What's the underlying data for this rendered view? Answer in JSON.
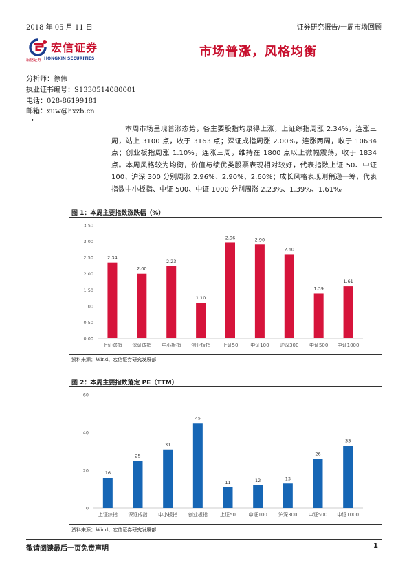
{
  "header": {
    "date": "2018 年 05 月 11 日",
    "category": "证券研究报告/一周市场回顾"
  },
  "logo": {
    "name": "宏信证券",
    "small_cn": "宏信证券",
    "english": "HONGXIN SECURITIES",
    "colors": {
      "red": "#c8102e",
      "blue": "#1a3d8f"
    }
  },
  "report_title": "市场普涨，风格均衡",
  "analyst": {
    "name_line": "分析师：徐伟",
    "license_line": "执业证书编号：S1330514080001",
    "phone_line": "电话：028-86199181",
    "email_line": "邮箱：xuw@hxzb.cn"
  },
  "bullet": "·",
  "body": {
    "paragraph": "本周市场呈现普涨态势，各主要股指均录得上涨，上证综指周涨 2.34%，连涨三周，站上 3100 点，收于 3163 点；深证成指周涨 2.00%，连涨两周，收于 10634 点；创业板指周涨 1.10%，连涨三周，维持在 1800 点以上微幅震荡，收于 1834 点。本周风格较为均衡，价值与绩优类股票表现相对较好，代表指数上证 50、中证 100、沪深 300 分别周涨 2.96%、2.90%、2.60%；成长风格表现则稍逊一筹，代表指数中小板指、中证 500、中证 1000 分别周涨 2.23%、1.39%、1.61%。"
  },
  "figures": [
    {
      "title": "图 1：本周主要指数涨跌幅（%）",
      "source": "资料来源：Wind、宏信证券研究发展部"
    },
    {
      "title": "图 2：本周主要指数落定 PE（TTM）",
      "source": "资料来源：Wind、宏信证券研究发展部"
    }
  ],
  "chart_data": [
    {
      "type": "bar",
      "title": "图 1：本周主要指数涨跌幅（%）",
      "categories": [
        "上证综指",
        "深证成指",
        "中小板指",
        "创业板指",
        "上证50",
        "中证100",
        "沪深300",
        "中证500",
        "中证1000"
      ],
      "values": [
        2.34,
        2.0,
        2.23,
        1.1,
        2.96,
        2.9,
        2.6,
        1.39,
        1.61
      ],
      "value_labels": [
        "2.34",
        "2.00",
        "2.23",
        "1.10",
        "2.96",
        "2.90",
        "2.60",
        "1.39",
        "1.61"
      ],
      "ylim": [
        0,
        3.5
      ],
      "yticks": [
        "0.00",
        "0.50",
        "1.00",
        "1.50",
        "2.00",
        "2.50",
        "3.00",
        "3.50"
      ],
      "tick_values": [
        0,
        0.5,
        1,
        1.5,
        2,
        2.5,
        3,
        3.5
      ],
      "color": "#d6143b",
      "grid": false
    },
    {
      "type": "bar",
      "title": "图 2：本周主要指数落定 PE（TTM）",
      "categories": [
        "上证综指",
        "深证成指",
        "中小板指",
        "创业板指",
        "上证50",
        "中证100",
        "沪深300",
        "中证500",
        "中证1000"
      ],
      "values": [
        16,
        25,
        31,
        45,
        11,
        12,
        13,
        26,
        33
      ],
      "value_labels": [
        "16",
        "25",
        "31",
        "45",
        "11",
        "12",
        "13",
        "26",
        "33"
      ],
      "ylim": [
        0,
        60
      ],
      "yticks": [
        "0",
        "20",
        "40",
        "60"
      ],
      "tick_values": [
        0,
        20,
        40,
        60
      ],
      "color": "#1666b5",
      "grid": false
    }
  ],
  "footer": {
    "disclaimer": "敬请阅读最后一页免责声明",
    "page": "1"
  }
}
